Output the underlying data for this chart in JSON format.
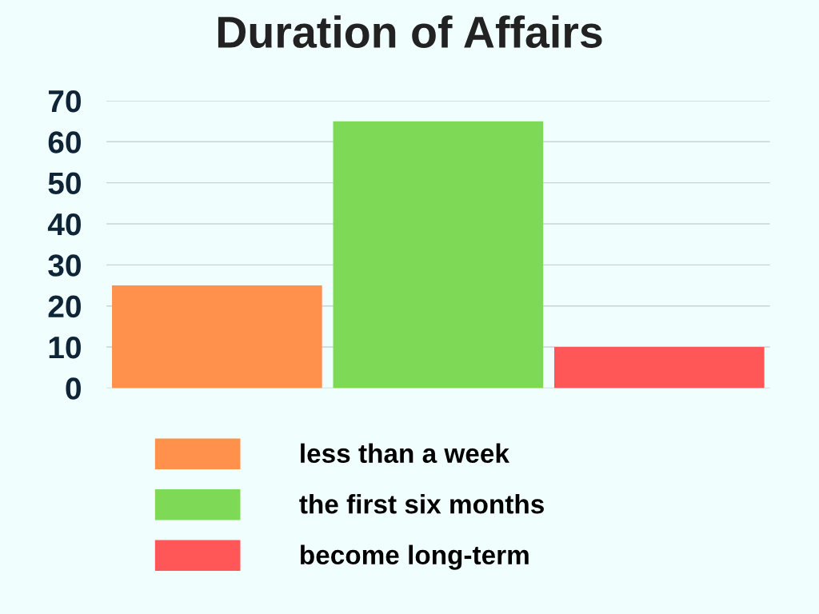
{
  "chart_data": {
    "type": "bar",
    "title": "Duration of Affairs",
    "categories": [
      null,
      null,
      null
    ],
    "series": [
      {
        "name": "less than a week",
        "color": "#ff914d",
        "values": [
          25,
          null,
          null
        ]
      },
      {
        "name": "the first six months",
        "color": "#7ed957",
        "values": [
          null,
          65,
          null
        ]
      },
      {
        "name": "become long-term",
        "color": "#ff5757",
        "values": [
          null,
          null,
          10
        ]
      }
    ],
    "ylim": [
      0,
      70
    ],
    "yticks": [
      0,
      10,
      20,
      30,
      40,
      50,
      60,
      70
    ],
    "grid": "y",
    "legend": "bottom"
  }
}
